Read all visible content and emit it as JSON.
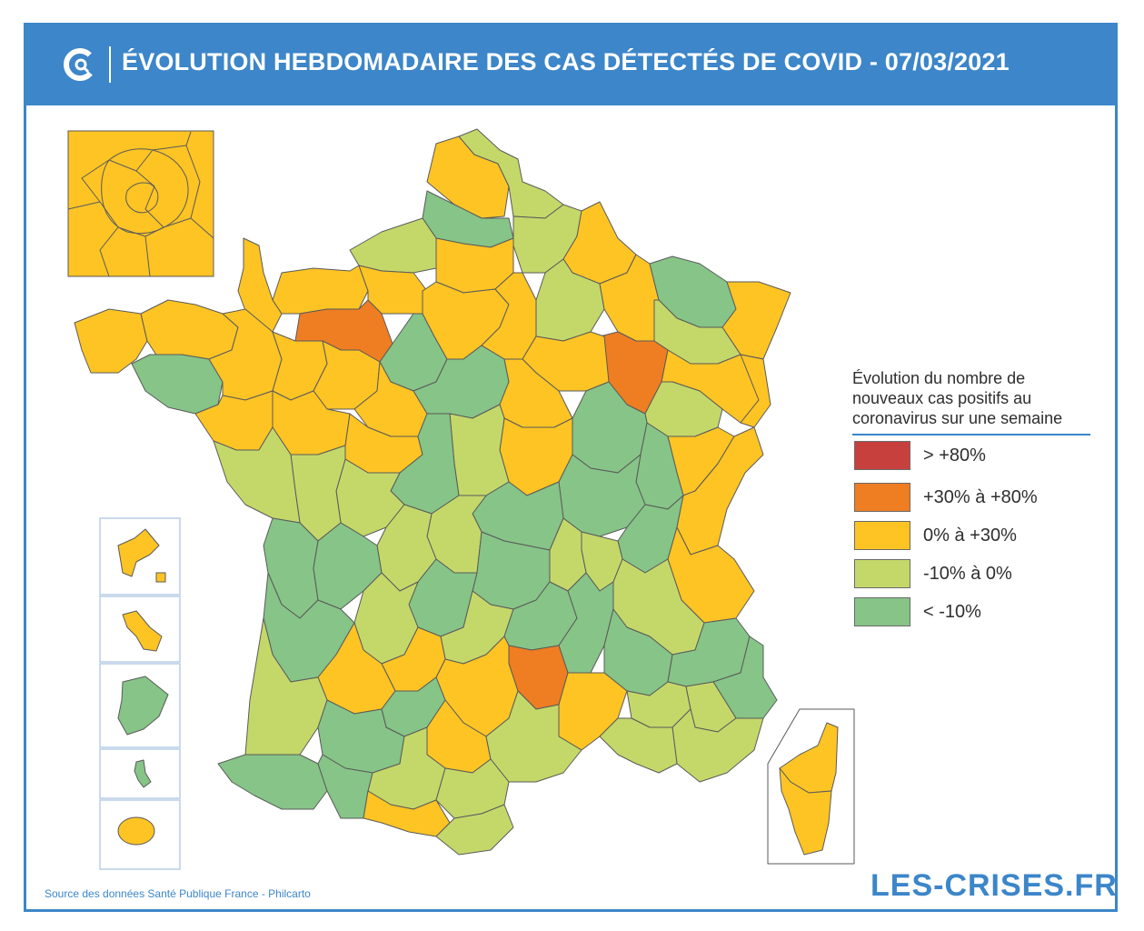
{
  "header": {
    "title": "ÉVOLUTION HEBDOMADAIRE DES CAS DÉTECTÉS DE COVID - 07/03/2021",
    "logo_icon": "les-crises-c-logo-icon"
  },
  "legend": {
    "title": "Évolution du nombre de nouveaux cas positifs au coronavirus sur une semaine",
    "items": [
      {
        "label": "> +80%",
        "color": "#c8403e"
      },
      {
        "label": "+30% à +80%",
        "color": "#ef7d22"
      },
      {
        "label": "0% à +30%",
        "color": "#fdc424"
      },
      {
        "label": "-10% à 0%",
        "color": "#c4d86a"
      },
      {
        "label": "< -10%",
        "color": "#86c487"
      }
    ]
  },
  "colors": {
    "brand_blue": "#3c86c9",
    "border_stroke": "#5a5a5a"
  },
  "footer": {
    "source": "Source des données Santé Publique France - Philcarto",
    "brand": "LES-CRISES.FR"
  }
}
